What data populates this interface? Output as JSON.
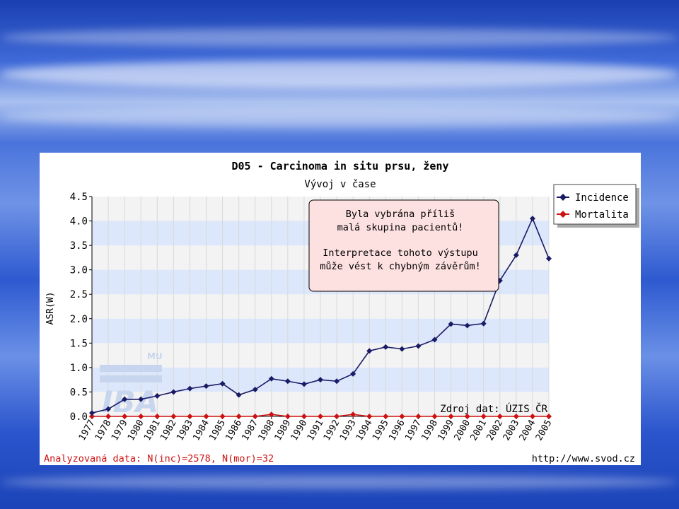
{
  "chart_data": {
    "type": "line",
    "title": "D05 - Carcinoma in situ prsu, ženy",
    "subtitle": "Vývoj v čase",
    "ylabel": "ASR(W)",
    "xlabel": "",
    "ylim": [
      0,
      4.5
    ],
    "yticks": [
      "0.0",
      "0.5",
      "1.0",
      "1.5",
      "2.0",
      "2.5",
      "3.0",
      "3.5",
      "4.0",
      "4.5"
    ],
    "categories": [
      "1977",
      "1978",
      "1979",
      "1980",
      "1981",
      "1982",
      "1983",
      "1984",
      "1985",
      "1986",
      "1987",
      "1988",
      "1989",
      "1990",
      "1991",
      "1992",
      "1993",
      "1994",
      "1995",
      "1996",
      "1997",
      "1998",
      "1999",
      "2000",
      "2001",
      "2002",
      "2003",
      "2004",
      "2005"
    ],
    "series": [
      {
        "name": "Incidence",
        "color": "#1a1a66",
        "values": [
          0.07,
          0.15,
          0.35,
          0.35,
          0.42,
          0.5,
          0.57,
          0.62,
          0.67,
          0.44,
          0.55,
          0.77,
          0.72,
          0.66,
          0.75,
          0.72,
          0.87,
          1.34,
          1.42,
          1.38,
          1.44,
          1.57,
          1.89,
          1.86,
          1.9,
          2.78,
          3.3,
          4.05,
          3.23
        ]
      },
      {
        "name": "Mortalita",
        "color": "#cc1111",
        "values": [
          0,
          0,
          0,
          0,
          0,
          0,
          0,
          0,
          0,
          0,
          0,
          0.04,
          0,
          0,
          0,
          0,
          0.04,
          0,
          0,
          0,
          0,
          0,
          0,
          0,
          0,
          0,
          0,
          0,
          0
        ]
      }
    ],
    "legend": "top-right",
    "grid": true,
    "warning": {
      "line1": "Byla vybrána příliš",
      "line2": "malá skupina pacientů!",
      "line3": "Interpretace tohoto výstupu",
      "line4": "může vést k chybným závěrům!"
    },
    "source": "Zdroj dat: ÚZIS ČR",
    "footer_left": "Analyzovaná data: N(inc)=2578, N(mor)=32",
    "footer_right": "http://www.svod.cz",
    "watermark": "IBA",
    "watermark_small": "MU"
  }
}
